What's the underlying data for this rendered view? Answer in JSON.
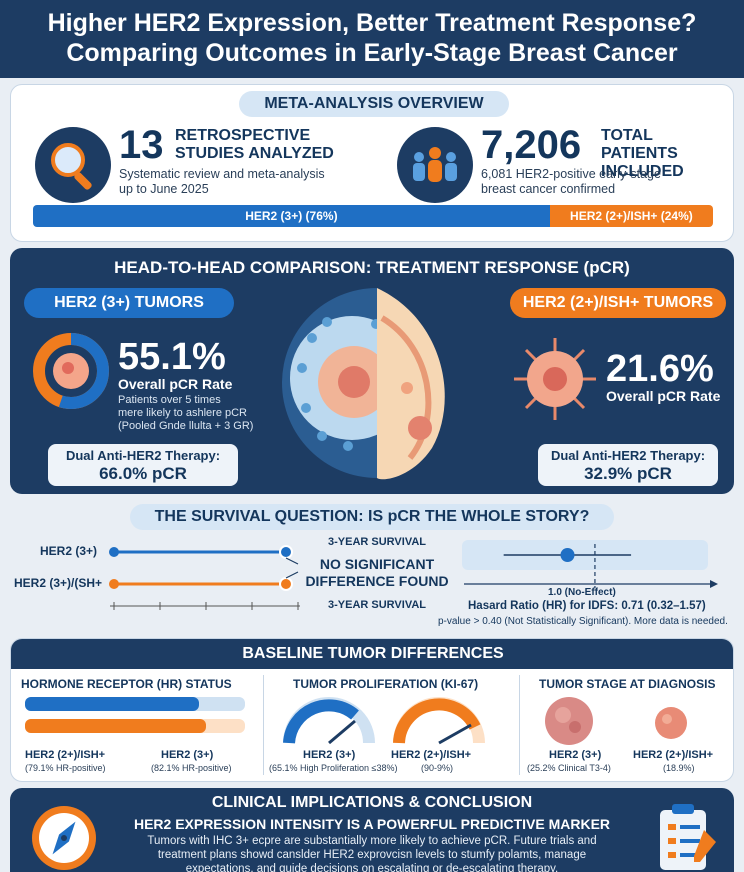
{
  "header": {
    "title_line1": "Higher HER2 Expression, Better Treatment Response?",
    "title_line2": "Comparing Outcomes in Early-Stage Breast Cancer"
  },
  "overview": {
    "heading": "META-ANALYSIS OVERVIEW",
    "studies_number": "13",
    "studies_label_1": "RETROSPECTIVE",
    "studies_label_2": "STUDIES ANALYZED",
    "studies_desc_1": "Systematic review and meta-analysis",
    "studies_desc_2": "up to June 2025",
    "patients_number": "7,206",
    "patients_label_1": "TOTAL PATIENTS",
    "patients_label_2": "INCLUDED",
    "patients_desc_1": "6,081 HER2-positive early-stage",
    "patients_desc_2": "breast cancer confirmed",
    "split_bar": {
      "left_label": "HER2 (3+) (76%)",
      "left_fraction": 0.76,
      "right_label": "HER2 (2+)/ISH+ (24%)",
      "right_fraction": 0.24
    }
  },
  "comparison": {
    "heading": "HEAD-TO-HEAD COMPARISON: TREATMENT RESPONSE (pCR)",
    "left": {
      "title": "HER2 (3+) TUMORS",
      "rate": "55.1%",
      "rate_label": "Overall pCR Rate",
      "note_1": "Patients over 5 times",
      "note_2": "mere likely to ashlere pCR",
      "note_3": "(Pooled Gnde llulta + 3 GR)",
      "dual_label": "Dual Anti-HER2 Therapy:",
      "dual_value": "66.0% pCR",
      "donut_fraction": 0.551
    },
    "right": {
      "title": "HER2 (2+)/ISH+ TUMORS",
      "rate": "21.6%",
      "rate_label": "Overall pCR Rate",
      "dual_label": "Dual Anti-HER2 Therapy:",
      "dual_value": "32.9% pCR"
    }
  },
  "survival": {
    "heading": "THE SURVIVAL QUESTION: IS pCR THE WHOLE STORY?",
    "row1_label": "HER2 (3+)",
    "row2_label": "HER2 (3+)/(SH+",
    "top_annot": "3-YEAR SURVIVAL",
    "bottom_annot": "3-YEAR SURVIVAL",
    "center_line1": "NO SIGNIFICANT",
    "center_line2": "DIFFERENCE FOUND",
    "forest_ref_label": "1.0 (No-Effect)",
    "hr_text": "Hasard Ratio (HR) for IDFS: 0.71 (0.32–1.57)",
    "p_text": "p-value > 0.40 (Not Statistically Significant). More data is needed.",
    "hr_value": 0.71,
    "hr_ci": [
      0.32,
      1.57
    ]
  },
  "baseline": {
    "heading": "BASELINE TUMOR DIFFERENCES",
    "hr_status": {
      "title": "HORMONE RECEPTOR (HR) STATUS",
      "a_label": "HER2 (2+)/ISH+",
      "a_sub": "(79.1% HR-positive)",
      "b_label": "HER2 (3+)",
      "b_sub": "(82.1% HR-positive)"
    },
    "ki67": {
      "title": "TUMOR PROLIFERATION (KI-67)",
      "a_label": "HER2 (3+)",
      "a_sub": "(65.1% High Proliferation ≤38%)",
      "b_label": "HER2 (2+)/ISH+",
      "b_sub": "(90-9%)"
    },
    "stage": {
      "title": "TUMOR STAGE AT DIAGNOSIS",
      "a_label": "HER2 (3+)",
      "a_sub": "(25.2% Clinical T3-4)",
      "b_label": "HER2 (2+)/ISH+",
      "b_sub": "(18.9%)"
    }
  },
  "implications": {
    "heading": "CLINICAL IMPLICATIONS & CONCLUSION",
    "subheading": "HER2 EXPRESSION INTENSITY IS A POWERFUL PREDICTIVE MARKER",
    "body_1": "Tumors with IHC 3+ ecpre are substantially more likely to achieve pCR. Future trials and",
    "body_2": "treatment plans showd canslder HER2 exprovcisn levels to stumfy polamts, manage",
    "body_3": "expectations, and guide decisions on escalating or de-escalating therapy."
  },
  "colors": {
    "navy": "#1d3c63",
    "blue": "#1f6fc4",
    "orange": "#f07c1e"
  }
}
